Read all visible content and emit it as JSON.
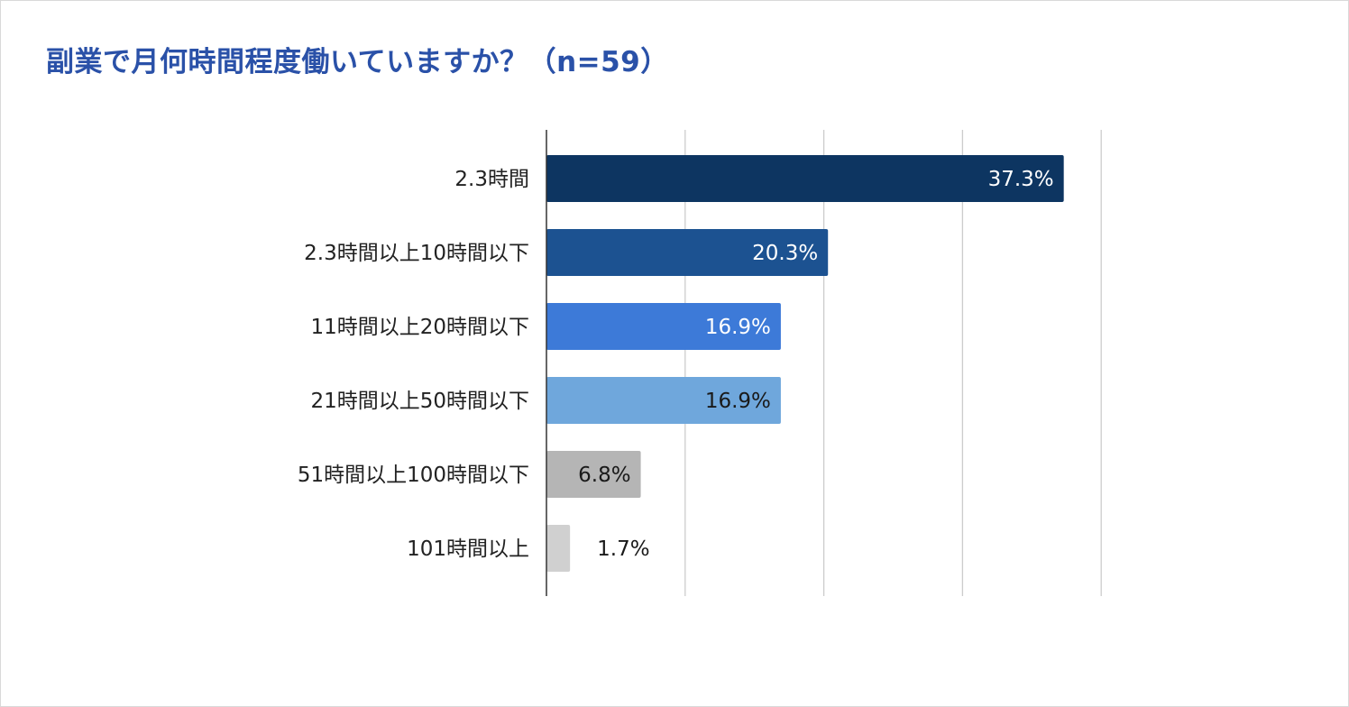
{
  "chart_data": {
    "type": "bar",
    "orientation": "horizontal",
    "title": "副業で月何時間程度働いていますか？（n=59）",
    "categories": [
      "2.3時間",
      "2.3時間以上10時間以下",
      "11時間以上20時間以下",
      "21時間以上50時間以下",
      "51時間以上100時間以下",
      "101時間以上"
    ],
    "values": [
      37.3,
      20.3,
      16.9,
      16.9,
      6.8,
      1.7
    ],
    "value_labels": [
      "37.3%",
      "20.3%",
      "16.9%",
      "16.9%",
      "6.8%",
      "1.7%"
    ],
    "bar_colors": [
      "#0d3561",
      "#1c5291",
      "#3d7ad8",
      "#6fa7dc",
      "#b5b5b5",
      "#d0d0d0"
    ],
    "label_colors": [
      "#ffffff",
      "#ffffff",
      "#ffffff",
      "#1a1a1a",
      "#1a1a1a",
      "#1a1a1a"
    ],
    "xlim": [
      0,
      40
    ],
    "gridline_values": [
      10,
      20,
      30,
      40
    ],
    "xlabel": "",
    "ylabel": "",
    "legend": "none",
    "grid": true
  },
  "colors": {
    "title": "#2a51a8",
    "gridline": "#cccccc",
    "axis": "#333333"
  }
}
